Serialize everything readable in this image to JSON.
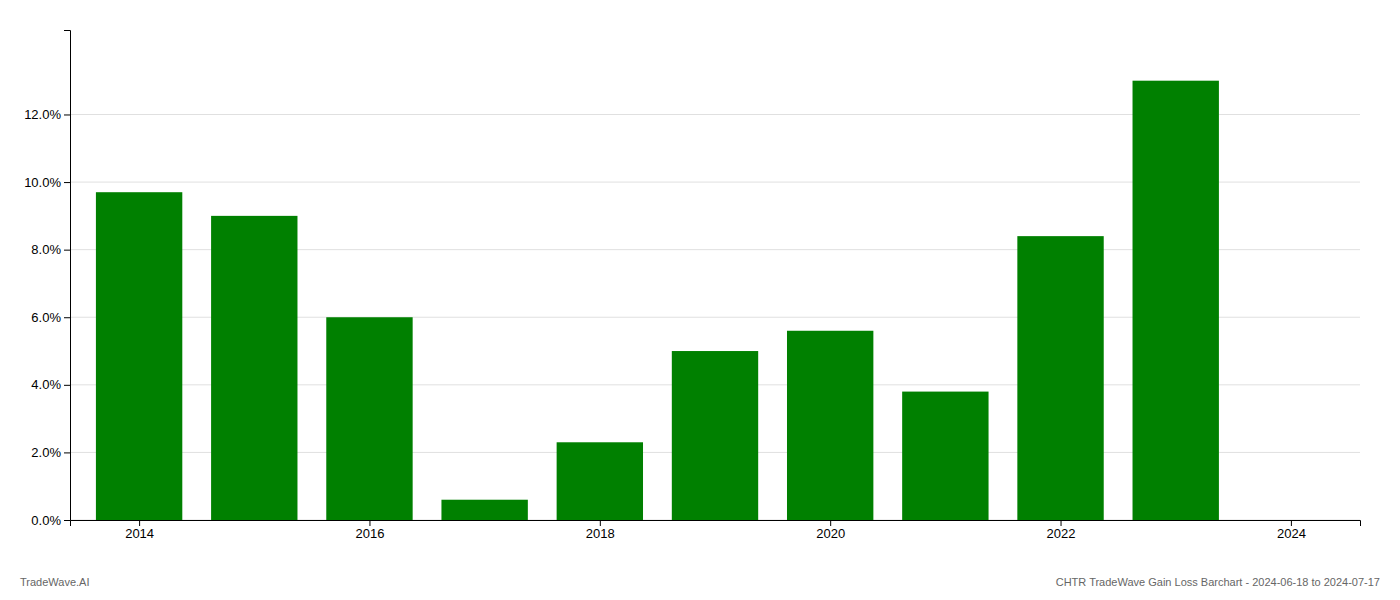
{
  "chart_data": {
    "type": "bar",
    "x": [
      2014,
      2015,
      2016,
      2017,
      2018,
      2019,
      2020,
      2021,
      2022,
      2023
    ],
    "values": [
      0.097,
      0.09,
      0.06,
      0.006,
      0.023,
      0.05,
      0.056,
      0.038,
      0.084,
      0.13
    ],
    "color": "#008000",
    "xlim": [
      2013.4,
      2024.6
    ],
    "xticks": [
      2014,
      2016,
      2018,
      2020,
      2022,
      2024
    ],
    "ylim": [
      0,
      0.145
    ],
    "yticks": [
      {
        "value": 0.0,
        "label": "0.0%"
      },
      {
        "value": 0.02,
        "label": "2.0%"
      },
      {
        "value": 0.04,
        "label": "4.0%"
      },
      {
        "value": 0.06,
        "label": "6.0%"
      },
      {
        "value": 0.08,
        "label": "8.0%"
      },
      {
        "value": 0.1,
        "label": "10.0%"
      },
      {
        "value": 0.12,
        "label": "12.0%"
      }
    ],
    "grid": true,
    "annotations": [
      "TradeWave.AI",
      "CHTR TradeWave Gain Loss Barchart - 2024-06-18 to 2024-07-17"
    ]
  }
}
